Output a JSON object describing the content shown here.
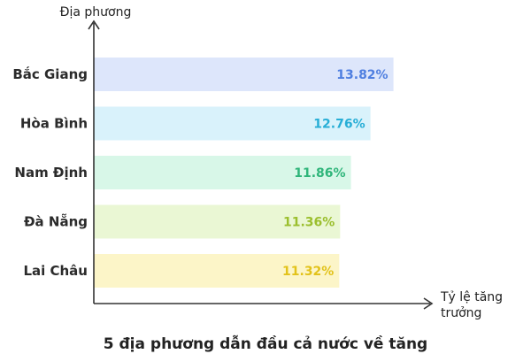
{
  "chart_data": {
    "type": "bar",
    "orientation": "horizontal",
    "title": "5 địa phương dẫn đầu cả nước về tăng",
    "ylabel": "Địa phương",
    "xlabel_lines": [
      "Tỷ lệ tăng",
      "trưởng"
    ],
    "categories": [
      "Bắc Giang",
      "Hòa Bình",
      "Nam Định",
      "Đà Nẵng",
      "Lai Châu"
    ],
    "values": [
      13.82,
      12.76,
      11.86,
      11.36,
      11.32
    ],
    "value_labels": [
      "13.82%",
      "12.76%",
      "11.86%",
      "11.36%",
      "11.32%"
    ],
    "xlim": [
      0,
      16
    ],
    "grid": false,
    "colors": {
      "bars": [
        "#dde6fb",
        "#d9f2fb",
        "#d8f7e8",
        "#eaf7d4",
        "#fcf5c8"
      ],
      "labels": [
        "#4f7fe0",
        "#27aed6",
        "#2fb57a",
        "#9bbf2e",
        "#e2c21a"
      ],
      "axis": "#333333"
    }
  }
}
